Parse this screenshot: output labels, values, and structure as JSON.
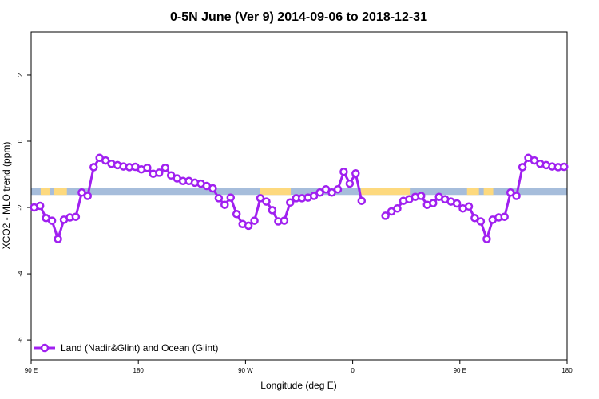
{
  "chart_data": {
    "type": "line",
    "title": "0-5N June (Ver 9)   2014-09-06 to 2018-12-31",
    "xlabel": "Longitude (deg E)",
    "ylabel": "XCO2 - MLO trend (ppm)",
    "x_ticks": [
      {
        "value": 90,
        "label": "90 E"
      },
      {
        "value": 180,
        "label": "180"
      },
      {
        "value": 270,
        "label": "90 W"
      },
      {
        "value": 360,
        "label": "0"
      },
      {
        "value": 450,
        "label": "90 E"
      },
      {
        "value": 540,
        "label": "180"
      }
    ],
    "y_ticks": [
      {
        "value": 2,
        "label": "2"
      },
      {
        "value": 0,
        "label": "0"
      },
      {
        "value": -2,
        "label": "-2"
      },
      {
        "value": -4,
        "label": "-4"
      },
      {
        "value": -6,
        "label": "-6"
      }
    ],
    "xlim": [
      90,
      540
    ],
    "ylim": [
      -6.6,
      3.3
    ],
    "band": {
      "y_range": [
        -1.42,
        -1.62
      ],
      "ocean_color": "#a6bddb",
      "land_color": "#fdd97e",
      "land_segments": [
        [
          98,
          106
        ],
        [
          109,
          120
        ],
        [
          282,
          308
        ],
        [
          367,
          408
        ],
        [
          456,
          466
        ],
        [
          470,
          478
        ]
      ]
    },
    "series": [
      {
        "name": "Land (Nadir&Glint) and Ocean (Glint)",
        "color": "#a020f0",
        "segments": [
          [
            [
              92.5,
              -2.0
            ],
            [
              97.5,
              -1.95
            ],
            [
              102.5,
              -2.32
            ],
            [
              107.5,
              -2.4
            ],
            [
              112.5,
              -2.95
            ],
            [
              117.5,
              -2.37
            ],
            [
              122.5,
              -2.3
            ],
            [
              127.5,
              -2.28
            ],
            [
              132.5,
              -1.55
            ],
            [
              137.5,
              -1.65
            ],
            [
              142.5,
              -0.78
            ],
            [
              147.5,
              -0.5
            ],
            [
              152.5,
              -0.58
            ],
            [
              157.5,
              -0.68
            ],
            [
              162.5,
              -0.72
            ],
            [
              167.5,
              -0.76
            ],
            [
              172.5,
              -0.78
            ],
            [
              177.5,
              -0.77
            ],
            [
              182.5,
              -0.85
            ],
            [
              187.5,
              -0.8
            ],
            [
              192.5,
              -0.98
            ],
            [
              197.5,
              -0.95
            ],
            [
              202.5,
              -0.8
            ],
            [
              207.5,
              -1.03
            ],
            [
              212.5,
              -1.12
            ],
            [
              217.5,
              -1.2
            ],
            [
              222.5,
              -1.2
            ],
            [
              227.5,
              -1.25
            ],
            [
              232.5,
              -1.28
            ],
            [
              237.5,
              -1.35
            ],
            [
              242.5,
              -1.42
            ],
            [
              247.5,
              -1.72
            ],
            [
              252.5,
              -1.92
            ],
            [
              257.5,
              -1.7
            ],
            [
              262.5,
              -2.2
            ],
            [
              267.5,
              -2.5
            ],
            [
              272.5,
              -2.55
            ],
            [
              277.5,
              -2.4
            ],
            [
              282.5,
              -1.72
            ],
            [
              287.5,
              -1.82
            ],
            [
              292.5,
              -2.08
            ],
            [
              297.5,
              -2.42
            ],
            [
              302.5,
              -2.4
            ],
            [
              307.5,
              -1.85
            ],
            [
              312.5,
              -1.72
            ],
            [
              317.5,
              -1.72
            ],
            [
              322.5,
              -1.7
            ],
            [
              327.5,
              -1.65
            ],
            [
              332.5,
              -1.55
            ],
            [
              337.5,
              -1.45
            ],
            [
              342.5,
              -1.55
            ],
            [
              347.5,
              -1.45
            ],
            [
              352.5,
              -0.92
            ],
            [
              357.5,
              -1.28
            ],
            [
              362.5,
              -0.97
            ],
            [
              367.5,
              -1.8
            ]
          ],
          [
            [
              387.5,
              -2.25
            ],
            [
              392.5,
              -2.12
            ],
            [
              397.5,
              -2.03
            ],
            [
              402.5,
              -1.8
            ],
            [
              407.5,
              -1.75
            ],
            [
              412.5,
              -1.68
            ],
            [
              417.5,
              -1.65
            ],
            [
              422.5,
              -1.92
            ],
            [
              427.5,
              -1.87
            ],
            [
              432.5,
              -1.68
            ],
            [
              437.5,
              -1.75
            ],
            [
              442.5,
              -1.82
            ],
            [
              447.5,
              -1.88
            ],
            [
              452.5,
              -2.03
            ],
            [
              457.5,
              -1.97
            ],
            [
              462.5,
              -2.32
            ],
            [
              467.5,
              -2.42
            ],
            [
              472.5,
              -2.95
            ],
            [
              477.5,
              -2.37
            ],
            [
              482.5,
              -2.3
            ],
            [
              487.5,
              -2.28
            ],
            [
              492.5,
              -1.55
            ],
            [
              497.5,
              -1.65
            ],
            [
              502.5,
              -0.78
            ],
            [
              507.5,
              -0.5
            ],
            [
              512.5,
              -0.58
            ],
            [
              517.5,
              -0.68
            ],
            [
              522.5,
              -0.72
            ],
            [
              527.5,
              -0.76
            ],
            [
              532.5,
              -0.78
            ],
            [
              537.5,
              -0.77
            ]
          ]
        ]
      }
    ],
    "legend": {
      "position": "bottom-left",
      "label": "Land (Nadir&Glint) and Ocean (Glint)"
    },
    "grid": false
  }
}
